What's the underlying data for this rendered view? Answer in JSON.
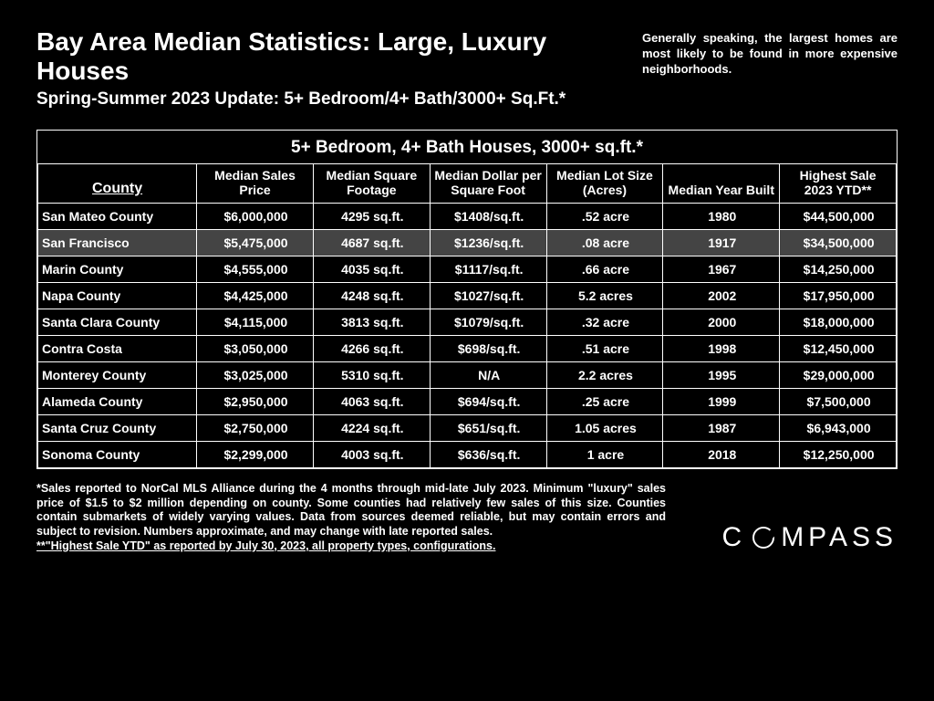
{
  "colors": {
    "background": "#000000",
    "text": "#ffffff",
    "border": "#ffffff",
    "row_highlight": "#444444"
  },
  "typography": {
    "title_fontsize": 28,
    "subtitle_fontsize": 19,
    "table_title_fontsize": 19,
    "header_fontsize": 14,
    "cell_fontsize": 14,
    "footnote_fontsize": 12.5,
    "brand_fontsize": 30
  },
  "header": {
    "title": "Bay Area Median Statistics:  Large, Luxury Houses",
    "subtitle": "Spring-Summer 2023 Update: 5+ Bedroom/4+ Bath/3000+ Sq.Ft.*",
    "note": "Generally speaking, the largest homes are most likely to be found in more expensive neighborhoods."
  },
  "table": {
    "title": "5+ Bedroom, 4+ Bath Houses, 3000+ sq.ft.*",
    "columns": [
      "County",
      "Median Sales Price",
      "Median Square Footage",
      "Median Dollar per Square Foot",
      "Median Lot Size (Acres)",
      "Median Year Built",
      "Highest Sale 2023 YTD**"
    ],
    "highlight_row_index": 1,
    "rows": [
      [
        "San Mateo County",
        "$6,000,000",
        "4295 sq.ft.",
        "$1408/sq.ft.",
        ".52 acre",
        "1980",
        "$44,500,000"
      ],
      [
        "San Francisco",
        "$5,475,000",
        "4687 sq.ft.",
        "$1236/sq.ft.",
        ".08 acre",
        "1917",
        "$34,500,000"
      ],
      [
        "Marin County",
        "$4,555,000",
        "4035 sq.ft.",
        "$1117/sq.ft.",
        ".66 acre",
        "1967",
        "$14,250,000"
      ],
      [
        "Napa County",
        "$4,425,000",
        "4248 sq.ft.",
        "$1027/sq.ft.",
        "5.2 acres",
        "2002",
        "$17,950,000"
      ],
      [
        "Santa Clara County",
        "$4,115,000",
        "3813 sq.ft.",
        "$1079/sq.ft.",
        ".32 acre",
        "2000",
        "$18,000,000"
      ],
      [
        "Contra Costa",
        "$3,050,000",
        "4266 sq.ft.",
        "$698/sq.ft.",
        ".51 acre",
        "1998",
        "$12,450,000"
      ],
      [
        "Monterey County",
        "$3,025,000",
        "5310 sq.ft.",
        "N/A",
        "2.2 acres",
        "1995",
        "$29,000,000"
      ],
      [
        "Alameda County",
        "$2,950,000",
        "4063 sq.ft.",
        "$694/sq.ft.",
        ".25 acre",
        "1999",
        "$7,500,000"
      ],
      [
        "Santa Cruz County",
        "$2,750,000",
        "4224 sq.ft.",
        "$651/sq.ft.",
        "1.05 acres",
        "1987",
        "$6,943,000"
      ],
      [
        "Sonoma County",
        "$2,299,000",
        "4003 sq.ft.",
        "$636/sq.ft.",
        "1 acre",
        "2018",
        "$12,250,000"
      ]
    ]
  },
  "footnotes": {
    "line1": "*Sales reported to NorCal MLS Alliance during the 4 months through mid-late July 2023. Minimum \"luxury\" sales price of $1.5 to $2 million depending on county. Some counties had relatively few sales of this size. Counties contain submarkets of widely varying values. Data from sources deemed reliable, but may contain errors and subject to revision.  Numbers approximate, and may change with late reported sales.",
    "line2": "**\"Highest Sale YTD\" as reported by July 30, 2023, all property types, configurations."
  },
  "brand": {
    "part1": "C",
    "part2": "MPASS"
  }
}
